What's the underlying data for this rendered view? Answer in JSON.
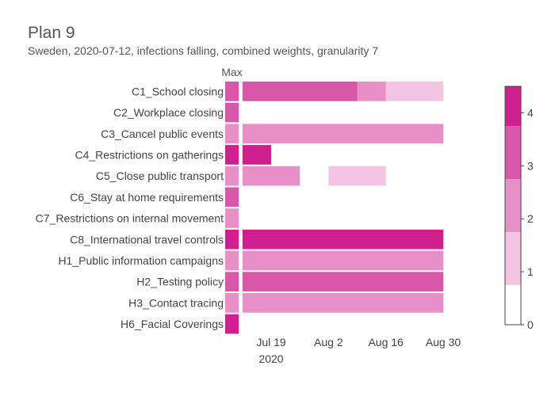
{
  "chart_data": {
    "type": "heatmap",
    "title": "Plan 9",
    "subtitle": "Sweden, 2020-07-12, infections falling, combined weights, granularity 7",
    "max_label": "Max",
    "rows": [
      "C1_School closing",
      "C2_Workplace closing",
      "C3_Cancel public events",
      "C4_Restrictions on gatherings",
      "C5_Close public transport",
      "C6_Stay at home requirements",
      "C7_Restrictions on internal movement",
      "C8_International travel controls",
      "H1_Public information campaigns",
      "H2_Testing policy",
      "H3_Contact tracing",
      "H6_Facial Coverings"
    ],
    "max_values": [
      3,
      3,
      2,
      4,
      2,
      3,
      2,
      4,
      2,
      3,
      2,
      4
    ],
    "x_ticks": [
      {
        "date": "2020-07-19",
        "label": "Jul 19",
        "sublabel": "2020"
      },
      {
        "date": "2020-08-02",
        "label": "Aug 2",
        "sublabel": ""
      },
      {
        "date": "2020-08-16",
        "label": "Aug 16",
        "sublabel": ""
      },
      {
        "date": "2020-08-30",
        "label": "Aug 30",
        "sublabel": ""
      }
    ],
    "x_range": [
      "2020-07-12",
      "2020-09-06"
    ],
    "segments": [
      {
        "row": "C1_School closing",
        "start": "2020-07-12",
        "end": "2020-08-09",
        "value": 3
      },
      {
        "row": "C1_School closing",
        "start": "2020-08-09",
        "end": "2020-08-16",
        "value": 2
      },
      {
        "row": "C1_School closing",
        "start": "2020-08-16",
        "end": "2020-08-30",
        "value": 1
      },
      {
        "row": "C3_Cancel public events",
        "start": "2020-07-12",
        "end": "2020-08-30",
        "value": 2
      },
      {
        "row": "C4_Restrictions on gatherings",
        "start": "2020-07-12",
        "end": "2020-07-19",
        "value": 4
      },
      {
        "row": "C5_Close public transport",
        "start": "2020-07-12",
        "end": "2020-07-26",
        "value": 2
      },
      {
        "row": "C5_Close public transport",
        "start": "2020-08-02",
        "end": "2020-08-16",
        "value": 1
      },
      {
        "row": "C8_International travel controls",
        "start": "2020-07-12",
        "end": "2020-08-30",
        "value": 4
      },
      {
        "row": "H1_Public information campaigns",
        "start": "2020-07-12",
        "end": "2020-08-30",
        "value": 2
      },
      {
        "row": "H2_Testing policy",
        "start": "2020-07-12",
        "end": "2020-08-30",
        "value": 3
      },
      {
        "row": "H3_Contact tracing",
        "start": "2020-07-12",
        "end": "2020-08-30",
        "value": 2
      }
    ],
    "colorscale": {
      "min": 0,
      "max": 4.5,
      "bands": [
        {
          "from": 0,
          "to": 0.75,
          "color": "#ffffff"
        },
        {
          "from": 0.75,
          "to": 1.75,
          "color": "#f3c5e2"
        },
        {
          "from": 1.75,
          "to": 2.75,
          "color": "#e88fc8"
        },
        {
          "from": 2.75,
          "to": 3.75,
          "color": "#d957aa"
        },
        {
          "from": 3.75,
          "to": 4.5,
          "color": "#cf1f8e"
        }
      ],
      "ticks": [
        0,
        1,
        2,
        3,
        4
      ]
    },
    "value_colors": {
      "1": "#f3c5e2",
      "2": "#e88fc8",
      "3": "#d957aa",
      "4": "#cf1f8e"
    }
  }
}
